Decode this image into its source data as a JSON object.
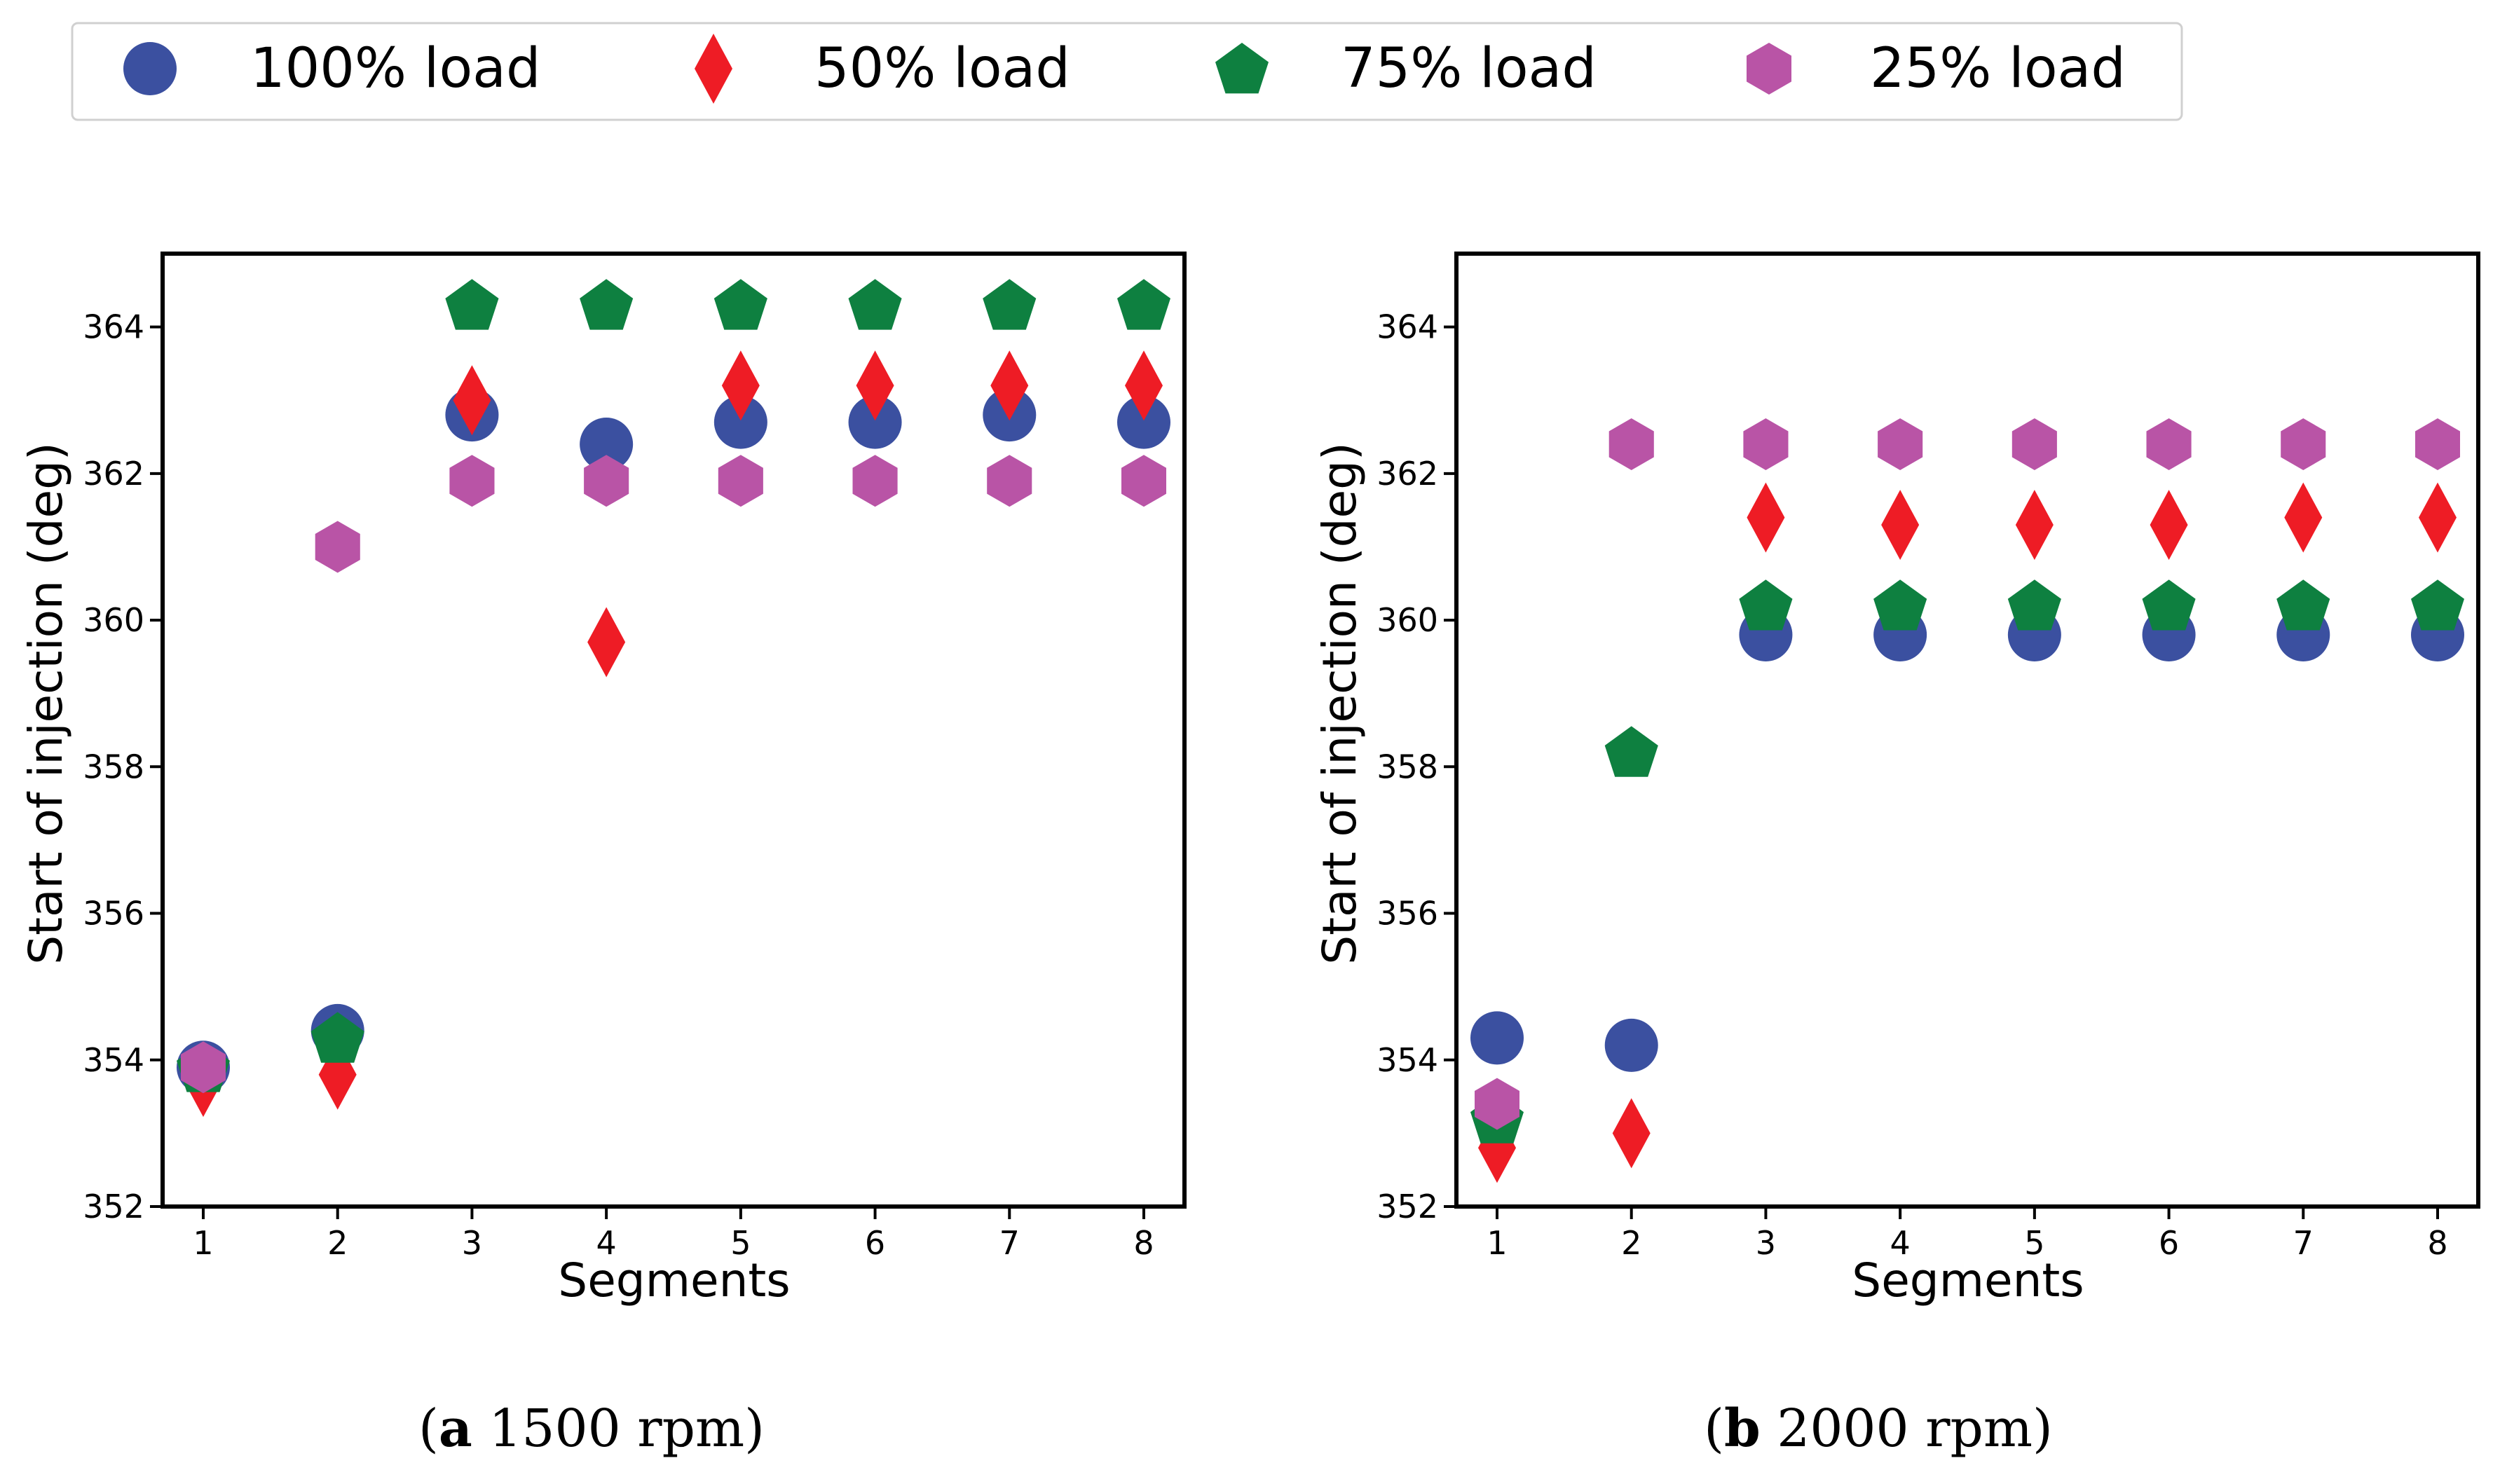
{
  "legend": {
    "items": [
      {
        "label": "100% load",
        "marker": "circle",
        "color": "#3b50a0"
      },
      {
        "label": "50% load",
        "marker": "diamond",
        "color": "#ee1c25"
      },
      {
        "label": "75% load",
        "marker": "pentagon",
        "color": "#0e8040"
      },
      {
        "label": "25% load",
        "marker": "hexagon",
        "color": "#b954a6"
      }
    ]
  },
  "captions": [
    {
      "letter": "a",
      "text": " 1500 rpm"
    },
    {
      "letter": "b",
      "text": " 2000 rpm"
    }
  ],
  "chart_data": [
    {
      "type": "scatter",
      "title": "",
      "xlabel": "Segments",
      "ylabel": "Start of injection (deg)",
      "x": [
        1,
        2,
        3,
        4,
        5,
        6,
        7,
        8
      ],
      "xticks": [
        "1",
        "2",
        "3",
        "4",
        "5",
        "6",
        "7",
        "8"
      ],
      "ylim": [
        352,
        365
      ],
      "yticks": [
        352,
        354,
        356,
        358,
        360,
        362,
        364
      ],
      "grid": false,
      "series": [
        {
          "name": "100% load",
          "values": [
            353.9,
            354.4,
            362.8,
            362.4,
            362.7,
            362.7,
            362.8,
            362.7
          ]
        },
        {
          "name": "50% load",
          "values": [
            353.7,
            353.8,
            363.0,
            359.7,
            363.2,
            363.2,
            363.2,
            363.2
          ]
        },
        {
          "name": "75% load",
          "values": [
            353.9,
            354.3,
            364.3,
            364.3,
            364.3,
            364.3,
            364.3,
            364.3
          ]
        },
        {
          "name": "25% load",
          "values": [
            353.9,
            361.0,
            361.9,
            361.9,
            361.9,
            361.9,
            361.9,
            361.9
          ]
        }
      ]
    },
    {
      "type": "scatter",
      "title": "",
      "xlabel": "Segments",
      "ylabel": "Start of injection (deg)",
      "x": [
        1,
        2,
        3,
        4,
        5,
        6,
        7,
        8
      ],
      "xticks": [
        "1",
        "2",
        "3",
        "4",
        "5",
        "6",
        "7",
        "8"
      ],
      "ylim": [
        352,
        365
      ],
      "yticks": [
        352,
        354,
        356,
        358,
        360,
        362,
        364
      ],
      "grid": false,
      "series": [
        {
          "name": "100% load",
          "values": [
            354.3,
            354.2,
            359.8,
            359.8,
            359.8,
            359.8,
            359.8,
            359.8
          ]
        },
        {
          "name": "50% load",
          "values": [
            352.8,
            353.0,
            361.4,
            361.3,
            361.3,
            361.3,
            361.4,
            361.4
          ]
        },
        {
          "name": "75% load",
          "values": [
            353.2,
            358.2,
            360.2,
            360.2,
            360.2,
            360.2,
            360.2,
            360.2
          ]
        },
        {
          "name": "25% load",
          "values": [
            353.4,
            362.4,
            362.4,
            362.4,
            362.4,
            362.4,
            362.4,
            362.4
          ]
        }
      ]
    }
  ]
}
